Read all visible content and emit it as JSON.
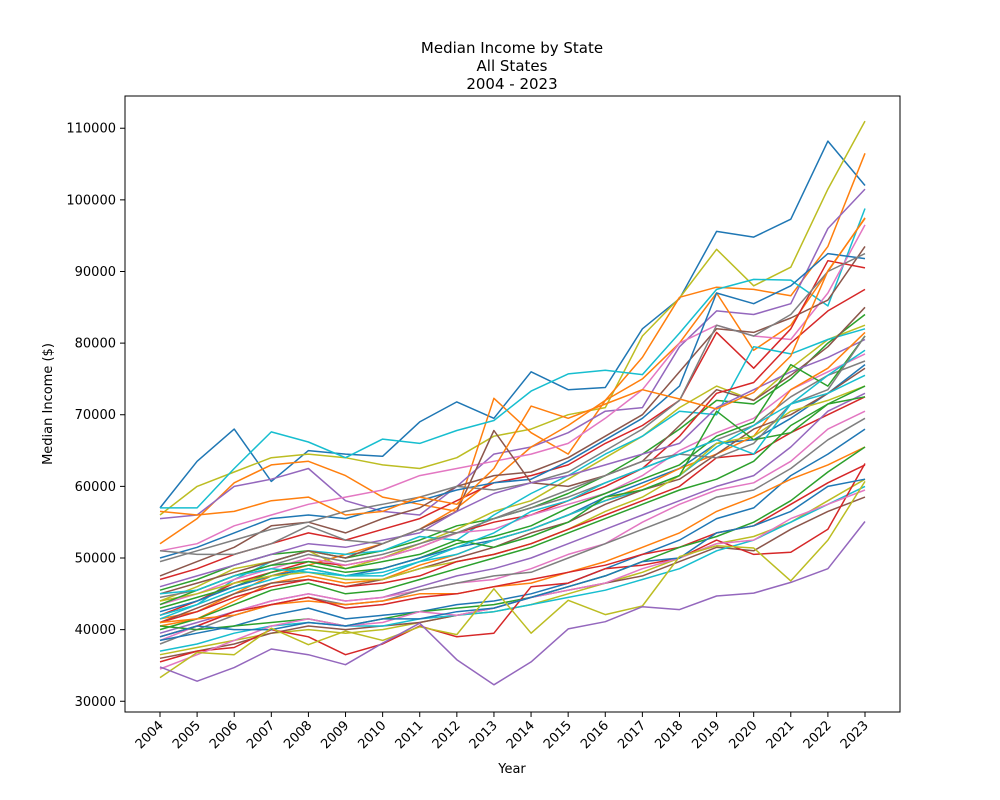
{
  "chart_data": {
    "type": "line",
    "title": [
      "Median Income by State",
      "All States",
      "2004 - 2023"
    ],
    "xlabel": "Year",
    "ylabel": "Median Income ($)",
    "ylim": [
      28500,
      114500
    ],
    "yticks": [
      "30000",
      "40000",
      "50000",
      "60000",
      "70000",
      "80000",
      "90000",
      "100000",
      "110000"
    ],
    "categories": [
      "2004",
      "2005",
      "2006",
      "2007",
      "2008",
      "2009",
      "2010",
      "2011",
      "2012",
      "2013",
      "2014",
      "2015",
      "2016",
      "2017",
      "2018",
      "2019",
      "2020",
      "2021",
      "2022",
      "2023"
    ],
    "grid": false,
    "legend": "none",
    "series": [
      {
        "color": "#1f77b4",
        "values": [
          57000,
          63500,
          68000,
          60700,
          65000,
          64500,
          64200,
          69000,
          71800,
          69500,
          76000,
          73500,
          73800,
          82000,
          86200,
          95600,
          94800,
          97300,
          108200,
          102000
        ]
      },
      {
        "color": "#bcbd22",
        "values": [
          56000,
          60000,
          62000,
          64000,
          64500,
          64000,
          63000,
          62500,
          64000,
          67000,
          68000,
          70000,
          71000,
          81000,
          86300,
          93100,
          88000,
          90600,
          101500,
          111000
        ]
      },
      {
        "color": "#ff7f0e",
        "values": [
          52000,
          55500,
          60500,
          63000,
          63500,
          61500,
          58500,
          57500,
          56500,
          72300,
          67500,
          64500,
          72000,
          78000,
          86400,
          87800,
          87500,
          86600,
          93500,
          106500
        ]
      },
      {
        "color": "#9467bd",
        "values": [
          55500,
          56000,
          60000,
          61000,
          62500,
          58000,
          56500,
          56000,
          60000,
          64500,
          65500,
          67500,
          70500,
          71000,
          79500,
          84500,
          84000,
          85500,
          96000,
          101500
        ]
      },
      {
        "color": "#17becf",
        "values": [
          57000,
          57000,
          62500,
          67600,
          66200,
          64000,
          66600,
          66000,
          67800,
          69200,
          73300,
          75700,
          76200,
          75600,
          81400,
          87500,
          88900,
          88800,
          85200,
          98800
        ]
      },
      {
        "color": "#ff7f0e",
        "values": [
          41500,
          42500,
          45000,
          47500,
          49000,
          50500,
          52000,
          54000,
          57000,
          61000,
          65500,
          68500,
          72000,
          75000,
          80000,
          87000,
          79000,
          82500,
          90000,
          97500
        ]
      },
      {
        "color": "#e377c2",
        "values": [
          51000,
          52000,
          54500,
          56000,
          57500,
          58500,
          59500,
          61500,
          62500,
          63500,
          64500,
          66000,
          69500,
          73500,
          80000,
          82500,
          81000,
          80500,
          87000,
          96500
        ]
      },
      {
        "color": "#8c564b",
        "values": [
          47500,
          49500,
          51500,
          54500,
          55000,
          53500,
          55500,
          57000,
          60000,
          61500,
          62000,
          64000,
          67000,
          70000,
          76000,
          82000,
          81500,
          83500,
          86000,
          93500
        ]
      },
      {
        "color": "#d62728",
        "values": [
          47000,
          48500,
          50500,
          52000,
          53500,
          52500,
          54000,
          55500,
          58000,
          60500,
          61500,
          63000,
          66000,
          68500,
          72000,
          81500,
          76500,
          82000,
          91500,
          90500
        ]
      },
      {
        "color": "#1f77b4",
        "values": [
          50000,
          51500,
          53500,
          55500,
          56000,
          55500,
          57000,
          58000,
          59500,
          60500,
          61000,
          63500,
          66500,
          69500,
          74000,
          87000,
          85500,
          88000,
          92500,
          91800
        ]
      },
      {
        "color": "#7f7f7f",
        "values": [
          49500,
          51000,
          52500,
          54000,
          55000,
          56500,
          57500,
          58500,
          60000,
          59500,
          60500,
          62000,
          65000,
          68000,
          72000,
          82500,
          81000,
          84000,
          90000,
          92500
        ]
      },
      {
        "color": "#2ca02c",
        "values": [
          45500,
          47000,
          49000,
          50500,
          51000,
          50000,
          51000,
          52500,
          54500,
          55500,
          57000,
          59000,
          61500,
          64500,
          68000,
          72000,
          71500,
          75000,
          80000,
          84000
        ]
      },
      {
        "color": "#bcbd22",
        "values": [
          44000,
          46000,
          48500,
          49500,
          51000,
          48500,
          50000,
          52000,
          54000,
          56500,
          58000,
          61000,
          64000,
          67000,
          71000,
          74000,
          72000,
          76500,
          80500,
          82500
        ]
      },
      {
        "color": "#17becf",
        "values": [
          41500,
          43500,
          47000,
          49500,
          51000,
          50500,
          51000,
          53000,
          52500,
          56000,
          59000,
          61500,
          64500,
          67000,
          70500,
          70000,
          79500,
          78500,
          80500,
          82000
        ]
      },
      {
        "color": "#8c564b",
        "values": [
          45000,
          46500,
          48000,
          49500,
          51000,
          50000,
          52000,
          54000,
          56500,
          67800,
          60500,
          60000,
          61500,
          63500,
          68500,
          73500,
          72000,
          75500,
          79500,
          85000
        ]
      },
      {
        "color": "#d62728",
        "values": [
          42000,
          44000,
          46500,
          48000,
          49500,
          49000,
          50000,
          51500,
          53500,
          55000,
          56000,
          58000,
          60000,
          62500,
          67000,
          73000,
          74500,
          80000,
          84500,
          87500
        ]
      },
      {
        "color": "#9467bd",
        "values": [
          46000,
          47500,
          49000,
          50500,
          52000,
          51500,
          52500,
          53500,
          56500,
          59000,
          60500,
          61500,
          63000,
          64500,
          66000,
          71000,
          73500,
          76000,
          78000,
          80500
        ]
      },
      {
        "color": "#e377c2",
        "values": [
          43500,
          45000,
          47000,
          48500,
          50000,
          49000,
          50000,
          51500,
          53500,
          54000,
          56000,
          57500,
          59000,
          61500,
          65000,
          67500,
          69500,
          73500,
          76000,
          78500
        ]
      },
      {
        "color": "#7f7f7f",
        "values": [
          44500,
          45500,
          47500,
          49000,
          50500,
          49500,
          50500,
          52000,
          53500,
          55500,
          57000,
          58500,
          60500,
          62500,
          64500,
          66500,
          68500,
          72500,
          75500,
          77500
        ]
      },
      {
        "color": "#2ca02c",
        "values": [
          43000,
          44500,
          46000,
          48000,
          49000,
          48000,
          48500,
          50000,
          52000,
          53000,
          54500,
          57000,
          59000,
          61000,
          63000,
          67000,
          69000,
          77000,
          74000,
          81000
        ]
      },
      {
        "color": "#1f77b4",
        "values": [
          42500,
          44000,
          46000,
          47500,
          48500,
          47500,
          48500,
          50000,
          51500,
          52500,
          54000,
          56000,
          58500,
          60500,
          62500,
          66000,
          66500,
          69500,
          73000,
          77000
        ]
      },
      {
        "color": "#ff7f0e",
        "values": [
          40500,
          41500,
          44000,
          46500,
          47500,
          46500,
          47000,
          49000,
          50500,
          52500,
          54000,
          56000,
          58000,
          60000,
          62500,
          64500,
          67000,
          73500,
          76500,
          81500
        ]
      },
      {
        "color": "#17becf",
        "values": [
          42000,
          43500,
          45500,
          47000,
          48500,
          47500,
          47500,
          49500,
          50500,
          52500,
          54000,
          56000,
          58000,
          59500,
          61500,
          65500,
          68500,
          71500,
          75500,
          79000
        ]
      },
      {
        "color": "#8c564b",
        "values": [
          41000,
          43000,
          45000,
          46500,
          47000,
          46000,
          47000,
          48500,
          50000,
          51500,
          53500,
          55000,
          57500,
          59500,
          61000,
          64500,
          68000,
          70000,
          73000,
          76500
        ]
      },
      {
        "color": "#bcbd22",
        "values": [
          44000,
          45000,
          46500,
          47500,
          48000,
          47000,
          47000,
          48500,
          49500,
          50500,
          52000,
          54000,
          56500,
          58500,
          61500,
          66000,
          67000,
          70500,
          72000,
          74000
        ]
      },
      {
        "color": "#d62728",
        "values": [
          41000,
          42500,
          44500,
          46000,
          47000,
          46000,
          46500,
          47500,
          49500,
          50500,
          52000,
          54000,
          56000,
          58000,
          60000,
          64000,
          64500,
          67500,
          70000,
          72500
        ]
      },
      {
        "color": "#2ca02c",
        "values": [
          40000,
          41500,
          43500,
          45500,
          46500,
          45000,
          45500,
          47000,
          48500,
          50000,
          51500,
          53500,
          55500,
          57500,
          59500,
          61000,
          63500,
          68500,
          71500,
          74000
        ]
      },
      {
        "color": "#9467bd",
        "values": [
          39500,
          41000,
          42500,
          44000,
          45000,
          44000,
          44500,
          46000,
          47500,
          48500,
          50000,
          52000,
          54000,
          56000,
          58000,
          60000,
          61500,
          65500,
          70500,
          73000
        ]
      },
      {
        "color": "#e377c2",
        "values": [
          38500,
          40500,
          42500,
          44000,
          45000,
          44000,
          44500,
          45500,
          46500,
          47000,
          48500,
          50500,
          52000,
          55000,
          57500,
          59500,
          60500,
          63500,
          68000,
          70500
        ]
      },
      {
        "color": "#7f7f7f",
        "values": [
          38000,
          40000,
          42000,
          43500,
          44500,
          43500,
          44000,
          45500,
          46500,
          47500,
          48000,
          50000,
          52000,
          54000,
          56000,
          58500,
          59500,
          62500,
          66500,
          69500
        ]
      },
      {
        "color": "#1f77b4",
        "values": [
          38500,
          39500,
          40500,
          42000,
          43000,
          41500,
          42000,
          42500,
          43500,
          44000,
          45000,
          46500,
          48500,
          50500,
          52500,
          55500,
          57000,
          61500,
          64500,
          68000
        ]
      },
      {
        "color": "#ff7f0e",
        "values": [
          41000,
          41500,
          42000,
          43500,
          44000,
          43500,
          44000,
          45000,
          45000,
          46000,
          46500,
          48000,
          49500,
          51500,
          53500,
          56500,
          58500,
          61000,
          63000,
          65500
        ]
      },
      {
        "color": "#d62728",
        "values": [
          39000,
          40500,
          42500,
          43500,
          44500,
          43000,
          43500,
          44500,
          45000,
          46000,
          47000,
          48000,
          49000,
          50500,
          51500,
          53500,
          54500,
          57500,
          60500,
          63000
        ]
      },
      {
        "color": "#2ca02c",
        "values": [
          40500,
          40000,
          40500,
          41000,
          41500,
          40500,
          41500,
          42500,
          43000,
          43500,
          44500,
          46000,
          47500,
          49500,
          51500,
          53000,
          55000,
          58000,
          62000,
          65500
        ]
      },
      {
        "color": "#bcbd22",
        "values": [
          36500,
          37500,
          38500,
          39500,
          40000,
          39500,
          40000,
          41000,
          42000,
          42500,
          43500,
          45000,
          46500,
          48000,
          50000,
          52000,
          53000,
          55000,
          58000,
          61000
        ]
      },
      {
        "color": "#8c564b",
        "values": [
          36000,
          37000,
          38000,
          39500,
          40500,
          40000,
          40500,
          41000,
          42000,
          43000,
          44500,
          45500,
          46500,
          47500,
          49500,
          51500,
          51000,
          54000,
          56500,
          58500
        ]
      },
      {
        "color": "#17becf",
        "values": [
          37000,
          38000,
          39500,
          40500,
          41000,
          40500,
          40500,
          41500,
          42000,
          42500,
          43500,
          44500,
          45500,
          47000,
          48500,
          51000,
          52500,
          55000,
          57500,
          60000
        ]
      },
      {
        "color": "#d62728",
        "values": [
          35500,
          37000,
          37500,
          40000,
          39000,
          36500,
          38000,
          40500,
          39000,
          39500,
          46000,
          46500,
          48500,
          49000,
          50000,
          52500,
          50500,
          50800,
          54000,
          63200
        ]
      },
      {
        "color": "#e377c2",
        "values": [
          34500,
          36500,
          38500,
          40500,
          41500,
          40500,
          41000,
          42500,
          42000,
          43000,
          44500,
          45500,
          46500,
          48500,
          50000,
          52000,
          52500,
          55500,
          57500,
          59500
        ]
      },
      {
        "color": "#1f77b4",
        "values": [
          39000,
          40500,
          40000,
          40000,
          41000,
          40500,
          41500,
          41500,
          42500,
          43000,
          44500,
          46000,
          47500,
          49500,
          50000,
          53500,
          54500,
          56500,
          60000,
          61000
        ]
      },
      {
        "color": "#bcbd22",
        "values": [
          33300,
          36800,
          36500,
          40200,
          37900,
          39800,
          38500,
          40400,
          39300,
          45700,
          39500,
          44100,
          42100,
          43300,
          50200,
          51700,
          51400,
          46800,
          52500,
          60700
        ]
      },
      {
        "color": "#9467bd",
        "values": [
          34800,
          32800,
          34700,
          37300,
          36500,
          35100,
          38100,
          40900,
          35800,
          32300,
          35500,
          40100,
          41100,
          43200,
          42800,
          44700,
          45100,
          46600,
          48500,
          55100
        ]
      },
      {
        "color": "#ff7f0e",
        "values": [
          56500,
          56000,
          56500,
          58000,
          58500,
          56000,
          56500,
          58500,
          57500,
          62500,
          71200,
          69500,
          71500,
          73500,
          72200,
          70800,
          73100,
          78200,
          90100,
          97400
        ]
      },
      {
        "color": "#7f7f7f",
        "values": [
          51000,
          50500,
          50500,
          52000,
          54500,
          52500,
          52000,
          54000,
          53500,
          55500,
          57500,
          59500,
          61500,
          63500,
          64500,
          64000,
          66000,
          71500,
          73500,
          81000
        ]
      },
      {
        "color": "#2ca02c",
        "values": [
          43500,
          45500,
          47500,
          49000,
          49500,
          48500,
          49500,
          50500,
          52500,
          51500,
          53000,
          55000,
          58500,
          59500,
          61500,
          70500,
          66500,
          67500,
          71500,
          72500
        ]
      },
      {
        "color": "#17becf",
        "values": [
          45000,
          45500,
          47500,
          48500,
          48000,
          47500,
          48000,
          49500,
          51500,
          53500,
          56500,
          58000,
          60500,
          62500,
          64500,
          66500,
          64500,
          71500,
          73000,
          75500
        ]
      }
    ]
  }
}
